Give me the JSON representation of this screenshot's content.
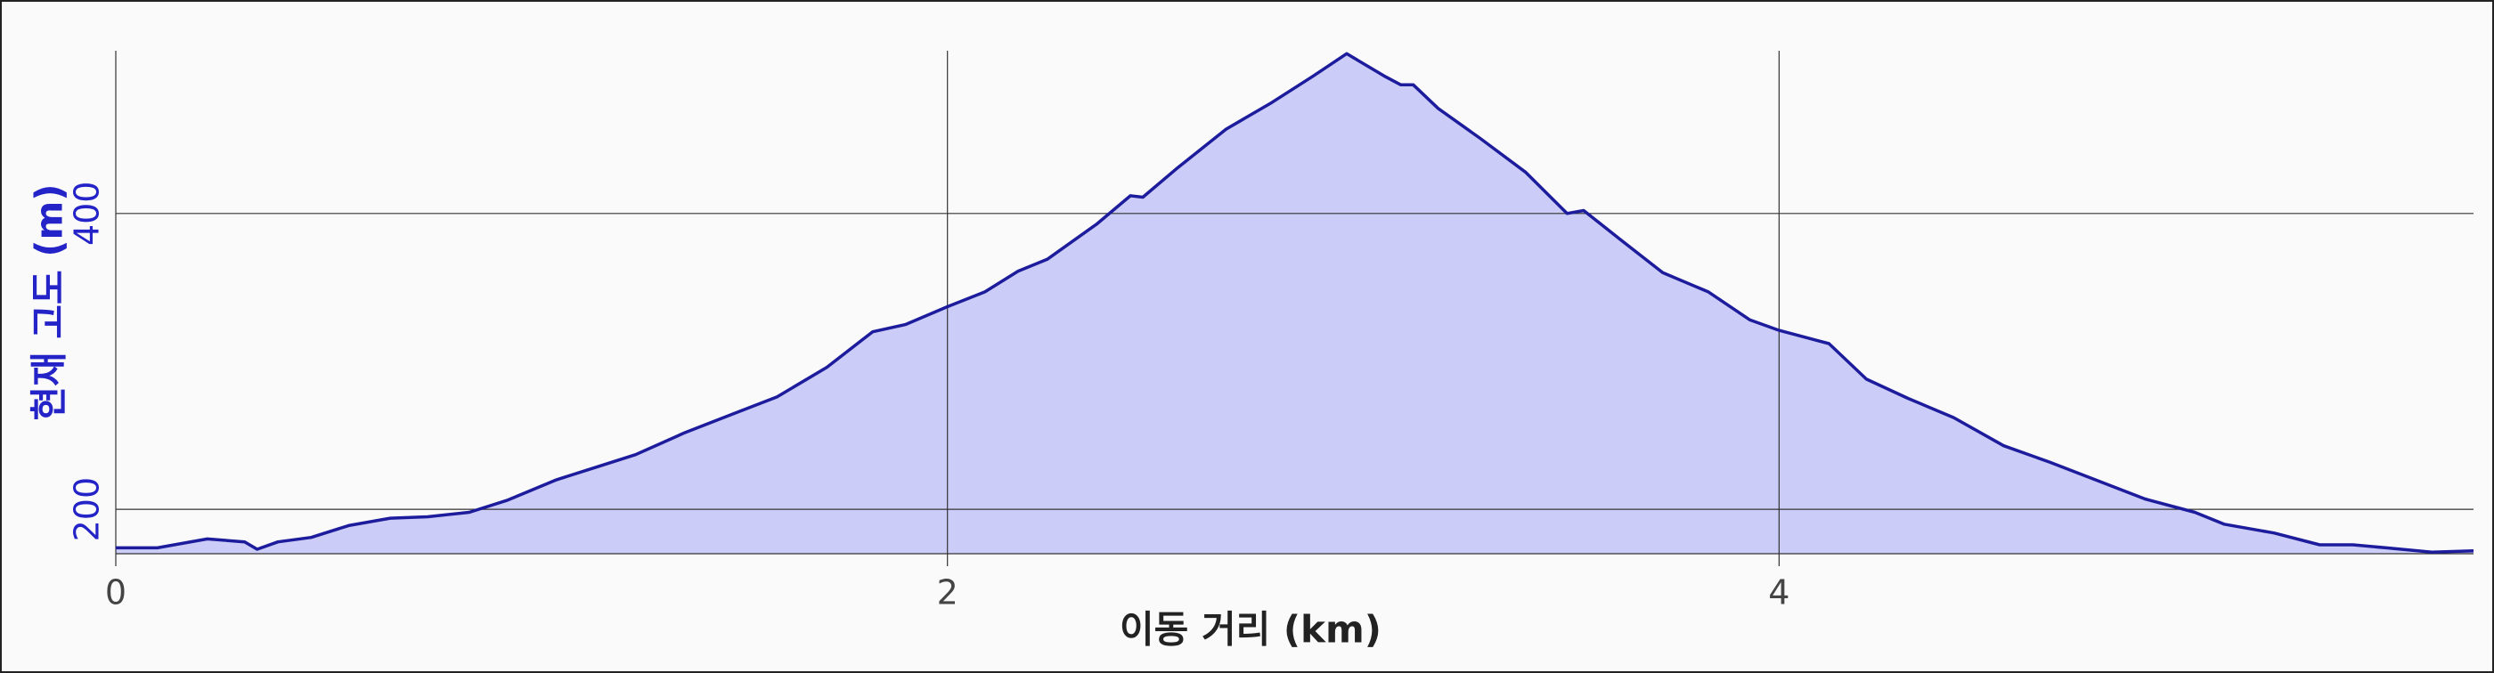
{
  "chart_data": {
    "type": "area",
    "x_label": "이동 거리 (km)",
    "y_label": "현재 고도 (m)",
    "x": [
      0,
      0.1,
      0.22,
      0.31,
      0.34,
      0.39,
      0.47,
      0.56,
      0.66,
      0.75,
      0.85,
      0.94,
      1.06,
      1.15,
      1.25,
      1.37,
      1.48,
      1.59,
      1.71,
      1.82,
      1.9,
      2.0,
      2.09,
      2.17,
      2.24,
      2.36,
      2.44,
      2.47,
      2.55,
      2.67,
      2.78,
      2.88,
      2.96,
      3.05,
      3.09,
      3.12,
      3.18,
      3.28,
      3.39,
      3.49,
      3.53,
      3.62,
      3.72,
      3.83,
      3.93,
      4.0,
      4.12,
      4.21,
      4.31,
      4.42,
      4.54,
      4.65,
      4.77,
      4.88,
      5.0,
      5.07,
      5.19,
      5.3,
      5.38,
      5.46,
      5.57,
      5.67
    ],
    "values": [
      174,
      174,
      180,
      178,
      173,
      178,
      181,
      189,
      194,
      195,
      198,
      206,
      220,
      228,
      237,
      252,
      264,
      276,
      296,
      320,
      325,
      337,
      347,
      361,
      369,
      393,
      412,
      411,
      430,
      457,
      475,
      493,
      508,
      493,
      487,
      487,
      471,
      451,
      428,
      400,
      402,
      382,
      360,
      347,
      328,
      321,
      312,
      288,
      275,
      262,
      243,
      232,
      219,
      207,
      198,
      190,
      184,
      176,
      176,
      174,
      171,
      172
    ],
    "color": "#1c1c9c",
    "fill_color": "#ccccf8",
    "y_label_color": "#2323c8",
    "xlim": [
      0,
      5.67
    ],
    "ylim": [
      170,
      510
    ],
    "xticks": [
      0,
      2,
      4
    ],
    "yticks": [
      200,
      400
    ],
    "grid": true
  }
}
